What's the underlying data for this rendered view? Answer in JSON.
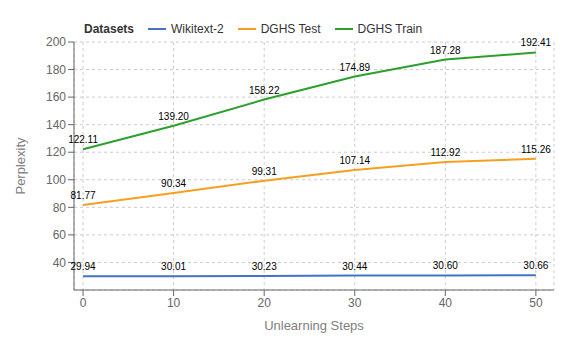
{
  "chart_data": {
    "type": "line",
    "xlabel": "Unlearning Steps",
    "ylabel": "Perplexity",
    "legend_title": "Datasets",
    "x": [
      0,
      10,
      20,
      30,
      40,
      50
    ],
    "series": [
      {
        "name": "Wikitext-2",
        "color": "#4472c4",
        "values": [
          29.94,
          30.01,
          30.23,
          30.44,
          30.6,
          30.66
        ],
        "value_labels": [
          "29.94",
          "30.01",
          "30.23",
          "30.44",
          "30.60",
          "30.66"
        ]
      },
      {
        "name": "DGHS Test",
        "color": "#f5a020",
        "values": [
          81.77,
          90.34,
          99.31,
          107.14,
          112.92,
          115.26
        ],
        "value_labels": [
          "81.77",
          "90.34",
          "99.31",
          "107.14",
          "112.92",
          "115.26"
        ]
      },
      {
        "name": "DGHS Train",
        "color": "#2ca02c",
        "values": [
          122.11,
          139.2,
          158.22,
          174.89,
          187.28,
          192.41
        ],
        "value_labels": [
          "122.11",
          "139.20",
          "158.22",
          "174.89",
          "187.28",
          "192.41"
        ]
      }
    ],
    "xlim": [
      -1,
      52
    ],
    "ylim": [
      20,
      200
    ],
    "xticks": [
      0,
      10,
      20,
      30,
      40,
      50
    ],
    "yticks": [
      40,
      60,
      80,
      100,
      120,
      140,
      160,
      180,
      200
    ],
    "grid": true,
    "legend": "upper left",
    "data_labels": true
  }
}
